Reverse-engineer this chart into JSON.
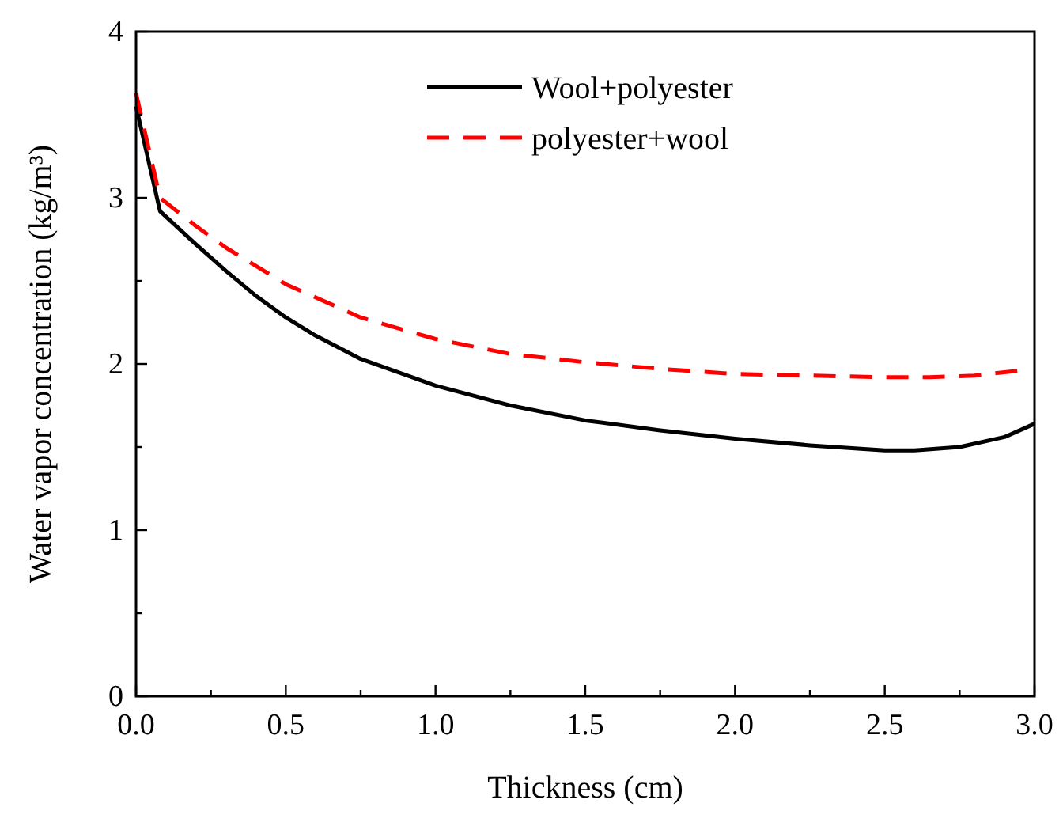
{
  "chart_data": {
    "type": "line",
    "xlabel": "Thickness (cm)",
    "ylabel": "Water vapor concentration (kg/m³)",
    "xlim": [
      0,
      3
    ],
    "ylim": [
      0,
      4
    ],
    "xticks": [
      {
        "value": 0,
        "label": "0.0"
      },
      {
        "value": 0.25,
        "label": null
      },
      {
        "value": 0.5,
        "label": "0.5"
      },
      {
        "value": 0.75,
        "label": null
      },
      {
        "value": 1,
        "label": "1.0"
      },
      {
        "value": 1.25,
        "label": null
      },
      {
        "value": 1.5,
        "label": "1.5"
      },
      {
        "value": 1.75,
        "label": null
      },
      {
        "value": 2,
        "label": "2.0"
      },
      {
        "value": 2.25,
        "label": null
      },
      {
        "value": 2.5,
        "label": "2.5"
      },
      {
        "value": 2.75,
        "label": null
      },
      {
        "value": 3,
        "label": "3.0"
      }
    ],
    "yticks": [
      0,
      {
        "value": 0.5,
        "label": null
      },
      1,
      {
        "value": 1.5,
        "label": null
      },
      2,
      {
        "value": 2.5,
        "label": null
      },
      3,
      {
        "value": 3.5,
        "label": null
      },
      4
    ],
    "legend": "top",
    "grid": false,
    "marker": "none",
    "series": [
      {
        "name": "Wool+polyester",
        "color": "#000000",
        "line_style": "solid",
        "x": [
          0,
          0.08,
          0.2,
          0.3,
          0.4,
          0.5,
          0.6,
          0.75,
          1,
          1.25,
          1.5,
          1.75,
          2,
          2.25,
          2.5,
          2.6,
          2.75,
          2.9,
          3
        ],
        "values": [
          3.55,
          2.92,
          2.72,
          2.56,
          2.41,
          2.28,
          2.17,
          2.03,
          1.87,
          1.75,
          1.66,
          1.6,
          1.55,
          1.51,
          1.48,
          1.48,
          1.5,
          1.56,
          1.64
        ]
      },
      {
        "name": "polyester+wool",
        "color": "#ff0000",
        "line_style": "dashed",
        "x": [
          0,
          0.08,
          0.2,
          0.3,
          0.5,
          0.75,
          1,
          1.25,
          1.5,
          1.75,
          2,
          2.25,
          2.5,
          2.65,
          2.8,
          2.95
        ],
        "values": [
          3.63,
          3.0,
          2.83,
          2.7,
          2.48,
          2.28,
          2.15,
          2.06,
          2.01,
          1.97,
          1.94,
          1.93,
          1.92,
          1.92,
          1.93,
          1.96
        ]
      }
    ]
  }
}
